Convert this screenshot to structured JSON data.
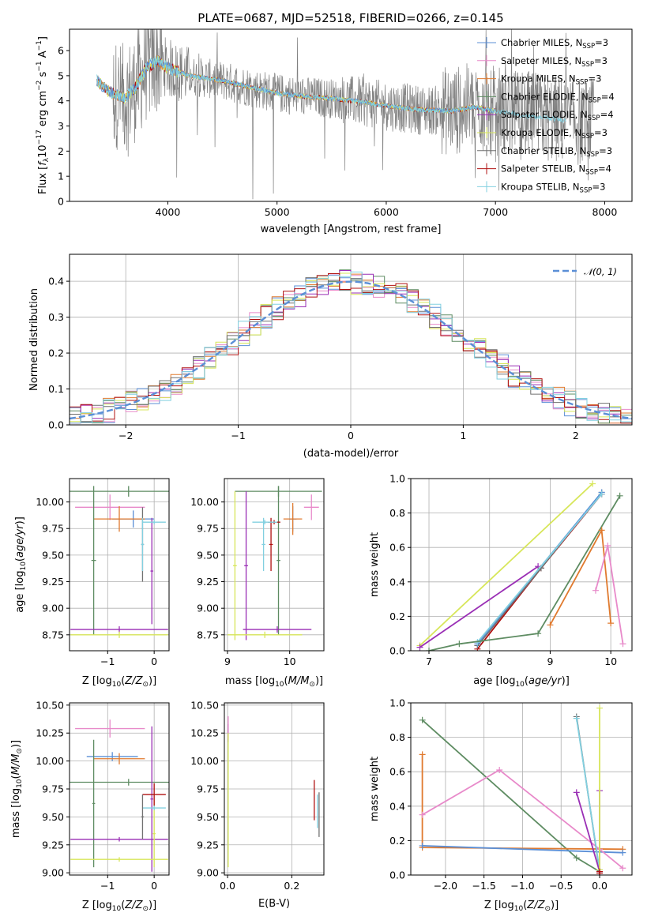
{
  "colors": {
    "chabrier_miles": "#5b8fd6",
    "salpeter_miles": "#e88aca",
    "kroupa_miles": "#e07a2e",
    "chabrier_elodie": "#5e8c62",
    "salpeter_elodie": "#9a2fb5",
    "kroupa_elodie": "#d7e659",
    "chabrier_stelib": "#707070",
    "salpeter_stelib": "#b01010",
    "kroupa_stelib": "#82d0e0",
    "gaussian": "#5b8fd6"
  },
  "chart_data": [
    {
      "id": "spectrum",
      "type": "line",
      "title": "PLATE=0687, MJD=52518, FIBERID=0266, z=0.145",
      "xlabel": "wavelength [Angstrom, rest frame]",
      "ylabel": "Flux [f_λ 10^-17 erg cm^-2 s^-1 A^-1]",
      "xlim": [
        3100,
        8250
      ],
      "ylim": [
        0,
        6.85
      ],
      "xticks": [
        "4000",
        "5000",
        "6000",
        "7000",
        "8000"
      ],
      "xtick_values": [
        4000,
        5000,
        6000,
        7000,
        8000
      ],
      "yticks": [
        "0",
        "1",
        "2",
        "3",
        "4",
        "5",
        "6"
      ],
      "ytick_values": [
        0,
        1,
        2,
        3,
        4,
        5,
        6
      ],
      "legend_position": "top-right",
      "continuum": {
        "x": [
          3350,
          3450,
          3600,
          3700,
          3800,
          3900,
          4000,
          4200,
          4500,
          4800,
          5000,
          5200,
          5500,
          5800,
          6000,
          6300,
          6600,
          6800,
          7200,
          7600,
          7900
        ],
        "y": [
          4.8,
          4.4,
          4.1,
          4.5,
          5.3,
          5.6,
          5.3,
          5.0,
          4.8,
          4.5,
          4.3,
          4.2,
          4.1,
          3.95,
          3.8,
          3.65,
          3.6,
          3.75,
          3.45,
          3.25,
          3.1
        ]
      },
      "series": [
        {
          "name": "Chabrier MILES, N_SSP=3",
          "label_main": "Chabrier MILES, N",
          "label_sub": "SSP",
          "label_end": "=3",
          "color_key": "chabrier_miles"
        },
        {
          "name": "Salpeter MILES, N_SSP=3",
          "label_main": "Salpeter MILES, N",
          "label_sub": "SSP",
          "label_end": "=3",
          "color_key": "salpeter_miles"
        },
        {
          "name": "Kroupa MILES, N_SSP=3",
          "label_main": "Kroupa MILES, N",
          "label_sub": "SSP",
          "label_end": "=3",
          "color_key": "kroupa_miles"
        },
        {
          "name": "Chabrier ELODIE, N_SSP=4",
          "label_main": "Chabrier ELODIE, N",
          "label_sub": "SSP",
          "label_end": "=4",
          "color_key": "chabrier_elodie"
        },
        {
          "name": "Salpeter ELODIE, N_SSP=4",
          "label_main": "Salpeter ELODIE, N",
          "label_sub": "SSP",
          "label_end": "=4",
          "color_key": "salpeter_elodie"
        },
        {
          "name": "Kroupa ELODIE, N_SSP=3",
          "label_main": "Kroupa ELODIE, N",
          "label_sub": "SSP",
          "label_end": "=3",
          "color_key": "kroupa_elodie"
        },
        {
          "name": "Chabrier STELIB, N_SSP=3",
          "label_main": "Chabrier STELIB, N",
          "label_sub": "SSP",
          "label_end": "=3",
          "color_key": "chabrier_stelib"
        },
        {
          "name": "Salpeter STELIB, N_SSP=4",
          "label_main": "Salpeter STELIB, N",
          "label_sub": "SSP",
          "label_end": "=4",
          "color_key": "salpeter_stelib"
        },
        {
          "name": "Kroupa STELIB, N_SSP=3",
          "label_main": "Kroupa STELIB, N",
          "label_sub": "SSP",
          "label_end": "=3",
          "color_key": "kroupa_stelib"
        }
      ]
    },
    {
      "id": "residuals",
      "type": "line",
      "xlabel": "(data-model)/error",
      "ylabel": "Normed distribution",
      "xlim": [
        -2.5,
        2.5
      ],
      "ylim": [
        0,
        0.475
      ],
      "xticks": [
        "−2",
        "−1",
        "0",
        "1",
        "2"
      ],
      "xtick_values": [
        -2,
        -1,
        0,
        1,
        2
      ],
      "yticks": [
        "0.0",
        "0.1",
        "0.2",
        "0.3",
        "0.4"
      ],
      "ytick_values": [
        0,
        0.1,
        0.2,
        0.3,
        0.4
      ],
      "legend": "𝒩(0, 1)",
      "legend_position": "top-right",
      "grid": true,
      "bin_width": 0.1
    },
    {
      "id": "age_vs_z",
      "type": "scatter",
      "xlabel": "Z [log10(Z/Z⊙)]",
      "ylabel": "age [log10(age/yr)]",
      "xlim": [
        -1.82,
        0.32
      ],
      "ylim": [
        8.6,
        10.22
      ],
      "xticks": [
        "−1",
        "0"
      ],
      "xtick_values": [
        -1,
        0
      ],
      "yticks": [
        "8.75",
        "9.00",
        "9.25",
        "9.50",
        "9.75",
        "10.00"
      ],
      "ytick_values": [
        8.75,
        9.0,
        9.25,
        9.5,
        9.75,
        10.0
      ],
      "grid": true,
      "points": [
        {
          "color_key": "chabrier_miles",
          "x": -0.45,
          "y": 9.84,
          "xerr": 0.45,
          "yerr": 0.08
        },
        {
          "color_key": "salpeter_miles",
          "x": -0.95,
          "y": 9.95,
          "xerr": 0.75,
          "yerr": 0.12
        },
        {
          "color_key": "kroupa_miles",
          "x": -0.75,
          "y": 9.84,
          "xerr": 0.55,
          "yerr": 0.12
        },
        {
          "color_key": "chabrier_elodie",
          "x": -0.55,
          "y": 10.1,
          "xerr": 1.3,
          "yerr": 0.05
        },
        {
          "color_key": "chabrier_elodie",
          "x": -1.3,
          "y": 9.45,
          "xerr": 0.05,
          "yerr": 0.7
        },
        {
          "color_key": "salpeter_elodie",
          "x": -0.75,
          "y": 8.8,
          "xerr": 1.05,
          "yerr": 0.03
        },
        {
          "color_key": "salpeter_elodie",
          "x": -0.05,
          "y": 9.35,
          "xerr": 0.03,
          "yerr": 0.5
        },
        {
          "color_key": "kroupa_elodie",
          "x": -0.75,
          "y": 8.75,
          "xerr": 1.05,
          "yerr": 0.03
        },
        {
          "color_key": "chabrier_stelib",
          "x": -0.25,
          "y": 9.6,
          "xerr": 0.03,
          "yerr": 0.35
        },
        {
          "color_key": "kroupa_stelib",
          "x": 0.0,
          "y": 9.81,
          "xerr": 0.25,
          "yerr": 0.02
        },
        {
          "color_key": "kroupa_stelib",
          "x": -0.25,
          "y": 9.6,
          "xerr": 0.03,
          "yerr": 0.25
        }
      ]
    },
    {
      "id": "age_vs_mass",
      "type": "scatter",
      "xlabel": "mass [log10(M/M⊙)]",
      "xlim": [
        8.95,
        10.55
      ],
      "ylim": [
        8.6,
        10.22
      ],
      "xticks": [
        "9",
        "10"
      ],
      "xtick_values": [
        9,
        10
      ],
      "yticks": [
        "8.75",
        "9.00",
        "9.25",
        "9.50",
        "9.75",
        "10.00"
      ],
      "ytick_values": [
        8.75,
        9.0,
        9.25,
        9.5,
        9.75,
        10.0
      ],
      "grid": true,
      "points": [
        {
          "color_key": "chabrier_miles",
          "x": 10.05,
          "y": 9.84,
          "xerr": 0.06,
          "yerr": 0.12
        },
        {
          "color_key": "salpeter_miles",
          "x": 10.35,
          "y": 9.95,
          "xerr": 0.12,
          "yerr": 0.12
        },
        {
          "color_key": "kroupa_miles",
          "x": 10.05,
          "y": 9.84,
          "xerr": 0.15,
          "yerr": 0.15
        },
        {
          "color_key": "chabrier_elodie",
          "x": 9.82,
          "y": 10.1,
          "xerr": 0.7,
          "yerr": 0.05
        },
        {
          "color_key": "chabrier_elodie",
          "x": 9.82,
          "y": 9.45,
          "xerr": 0.03,
          "yerr": 0.7
        },
        {
          "color_key": "salpeter_elodie",
          "x": 9.3,
          "y": 9.4,
          "xerr": 0.03,
          "yerr": 0.7
        },
        {
          "color_key": "salpeter_elodie",
          "x": 9.8,
          "y": 8.8,
          "xerr": 0.55,
          "yerr": 0.03
        },
        {
          "color_key": "kroupa_elodie",
          "x": 9.12,
          "y": 9.4,
          "xerr": 0.03,
          "yerr": 0.7
        },
        {
          "color_key": "kroupa_elodie",
          "x": 9.6,
          "y": 8.75,
          "xerr": 0.6,
          "yerr": 0.03
        },
        {
          "color_key": "salpeter_stelib",
          "x": 9.7,
          "y": 9.6,
          "xerr": 0.03,
          "yerr": 0.25
        },
        {
          "color_key": "salpeter_stelib",
          "x": 9.75,
          "y": 9.81,
          "xerr": 0.1,
          "yerr": 0.02
        },
        {
          "color_key": "kroupa_stelib",
          "x": 9.58,
          "y": 9.6,
          "xerr": 0.03,
          "yerr": 0.25
        },
        {
          "color_key": "kroupa_stelib",
          "x": 9.6,
          "y": 9.81,
          "xerr": 0.2,
          "yerr": 0.02
        }
      ]
    },
    {
      "id": "weight_vs_age",
      "type": "line",
      "xlabel": "age [log10(age/yr)]",
      "ylabel": "mass weight",
      "xlim": [
        6.7,
        10.35
      ],
      "ylim": [
        0,
        1.0
      ],
      "xticks": [
        "7",
        "8",
        "9",
        "10"
      ],
      "xtick_values": [
        7,
        8,
        9,
        10
      ],
      "yticks": [
        "0.0",
        "0.2",
        "0.4",
        "0.6",
        "0.8",
        "1.0"
      ],
      "ytick_values": [
        0,
        0.2,
        0.4,
        0.6,
        0.8,
        1.0
      ],
      "grid": true,
      "series": [
        {
          "color_key": "kroupa_elodie",
          "x": [
            6.85,
            9.7
          ],
          "y": [
            0.03,
            0.97
          ]
        },
        {
          "color_key": "salpeter_elodie",
          "x": [
            6.85,
            8.8
          ],
          "y": [
            0.02,
            0.49
          ]
        },
        {
          "color_key": "salpeter_stelib",
          "x": [
            7.8,
            8.85,
            9.85
          ],
          "y": [
            0.01,
            0.48,
            0.91
          ]
        },
        {
          "color_key": "chabrier_stelib",
          "x": [
            7.8,
            8.85,
            9.85
          ],
          "y": [
            0.03,
            0.48,
            0.92
          ]
        },
        {
          "color_key": "chabrier_miles",
          "x": [
            7.8,
            9.85
          ],
          "y": [
            0.04,
            0.92
          ]
        },
        {
          "color_key": "kroupa_stelib",
          "x": [
            7.8,
            9.85
          ],
          "y": [
            0.05,
            0.91
          ]
        },
        {
          "color_key": "chabrier_elodie",
          "x": [
            7.0,
            7.5,
            8.8,
            10.15
          ],
          "y": [
            0.0,
            0.04,
            0.1,
            0.9
          ]
        },
        {
          "color_key": "kroupa_miles",
          "x": [
            9.0,
            9.85,
            10.0
          ],
          "y": [
            0.15,
            0.7,
            0.16
          ]
        },
        {
          "color_key": "salpeter_miles",
          "x": [
            9.75,
            9.95,
            10.2
          ],
          "y": [
            0.35,
            0.61,
            0.04
          ]
        }
      ]
    },
    {
      "id": "mass_vs_z",
      "type": "scatter",
      "xlabel": "Z [log10(Z/Z⊙)]",
      "ylabel": "mass [log10(M/M⊙)]",
      "xlim": [
        -1.82,
        0.32
      ],
      "ylim": [
        8.98,
        10.52
      ],
      "xticks": [
        "−1",
        "0"
      ],
      "xtick_values": [
        -1,
        0
      ],
      "yticks": [
        "9.00",
        "9.25",
        "9.50",
        "9.75",
        "10.00",
        "10.25",
        "10.50"
      ],
      "ytick_values": [
        9.0,
        9.25,
        9.5,
        9.75,
        10.0,
        10.25,
        10.5
      ],
      "grid": true,
      "points": [
        {
          "color_key": "salpeter_miles",
          "x": -0.95,
          "y": 10.29,
          "xerr": 0.75,
          "yerr": 0.08
        },
        {
          "color_key": "chabrier_miles",
          "x": -0.9,
          "y": 10.04,
          "xerr": 0.55,
          "yerr": 0.04
        },
        {
          "color_key": "kroupa_miles",
          "x": -0.75,
          "y": 10.02,
          "xerr": 0.55,
          "yerr": 0.05
        },
        {
          "color_key": "chabrier_elodie",
          "x": -0.55,
          "y": 9.81,
          "xerr": 1.3,
          "yerr": 0.03
        },
        {
          "color_key": "chabrier_elodie",
          "x": -1.3,
          "y": 9.62,
          "xerr": 0.03,
          "yerr": 0.57
        },
        {
          "color_key": "salpeter_elodie",
          "x": -0.75,
          "y": 9.3,
          "xerr": 1.05,
          "yerr": 0.02
        },
        {
          "color_key": "salpeter_elodie",
          "x": -0.05,
          "y": 9.66,
          "xerr": 0.03,
          "yerr": 0.65
        },
        {
          "color_key": "kroupa_elodie",
          "x": -0.75,
          "y": 9.12,
          "xerr": 1.05,
          "yerr": 0.02
        },
        {
          "color_key": "kroupa_elodie",
          "x": 0.0,
          "y": 9.35,
          "xerr": 0.03,
          "yerr": 0.3
        },
        {
          "color_key": "salpeter_stelib",
          "x": 0.0,
          "y": 9.7,
          "xerr": 0.25,
          "yerr": 0.1
        },
        {
          "color_key": "kroupa_stelib",
          "x": 0.0,
          "y": 9.58,
          "xerr": 0.25,
          "yerr": 0.02
        },
        {
          "color_key": "chabrier_stelib",
          "x": -0.25,
          "y": 9.5,
          "xerr": 0.03,
          "yerr": 0.2
        }
      ]
    },
    {
      "id": "mass_vs_ebv",
      "type": "scatter",
      "xlabel": "E(B-V)",
      "xlim": [
        -0.01,
        0.3
      ],
      "ylim": [
        8.98,
        10.52
      ],
      "xticks": [
        "0.0",
        "0.2"
      ],
      "xtick_values": [
        0.0,
        0.2
      ],
      "yticks": [
        "9.00",
        "9.25",
        "9.50",
        "9.75",
        "10.00",
        "10.25",
        "10.50"
      ],
      "ytick_values": [
        9.0,
        9.25,
        9.5,
        9.75,
        10.0,
        10.25,
        10.5
      ],
      "grid": true,
      "points": [
        {
          "color_key": "salpeter_elodie",
          "x": 0.002,
          "y": 10.25,
          "xerr": 0.0,
          "yerr": 0.08
        },
        {
          "color_key": "salpeter_miles",
          "x": 0.002,
          "y": 10.3,
          "xerr": 0.0,
          "yerr": 0.1
        },
        {
          "color_key": "kroupa_elodie",
          "x": 0.002,
          "y": 9.65,
          "xerr": 0.0,
          "yerr": 0.6
        },
        {
          "color_key": "salpeter_stelib",
          "x": 0.27,
          "y": 9.65,
          "xerr": 0.0,
          "yerr": 0.18
        },
        {
          "color_key": "kroupa_stelib",
          "x": 0.28,
          "y": 9.55,
          "xerr": 0.0,
          "yerr": 0.15
        },
        {
          "color_key": "chabrier_stelib",
          "x": 0.285,
          "y": 9.52,
          "xerr": 0.0,
          "yerr": 0.2
        }
      ]
    },
    {
      "id": "weight_vs_z",
      "type": "line",
      "xlabel": "Z [log10(Z/Z⊙)]",
      "ylabel": "mass weight",
      "xlim": [
        -2.45,
        0.42
      ],
      "ylim": [
        0,
        1.0
      ],
      "xticks": [
        "−2.0",
        "−1.5",
        "−1.0",
        "−0.5",
        "0.0"
      ],
      "xtick_values": [
        -2.0,
        -1.5,
        -1.0,
        -0.5,
        0.0
      ],
      "yticks": [
        "0.0",
        "0.2",
        "0.4",
        "0.6",
        "0.8",
        "1.0"
      ],
      "ytick_values": [
        0,
        0.2,
        0.4,
        0.6,
        0.8,
        1.0
      ],
      "grid": true,
      "series": [
        {
          "color_key": "chabrier_elodie",
          "x": [
            -2.3,
            -0.3,
            0.0
          ],
          "y": [
            0.9,
            0.1,
            0.02
          ]
        },
        {
          "color_key": "kroupa_miles",
          "x": [
            -2.3,
            -2.3,
            0.3
          ],
          "y": [
            0.7,
            0.16,
            0.15
          ]
        },
        {
          "color_key": "chabrier_miles",
          "x": [
            -2.3,
            0.3
          ],
          "y": [
            0.17,
            0.13
          ]
        },
        {
          "color_key": "salpeter_miles",
          "x": [
            -2.3,
            -1.3,
            0.0,
            0.3
          ],
          "y": [
            0.35,
            0.61,
            0.15,
            0.04
          ]
        },
        {
          "color_key": "chabrier_stelib",
          "x": [
            -0.3,
            0.0
          ],
          "y": [
            0.92,
            0.02
          ]
        },
        {
          "color_key": "kroupa_stelib",
          "x": [
            -0.3,
            0.0
          ],
          "y": [
            0.91,
            0.03
          ]
        },
        {
          "color_key": "salpeter_elodie",
          "x": [
            -0.3,
            0.0,
            0.0
          ],
          "y": [
            0.48,
            0.02,
            0.49
          ]
        },
        {
          "color_key": "kroupa_elodie",
          "x": [
            0.0,
            0.0
          ],
          "y": [
            0.97,
            0.03
          ]
        },
        {
          "color_key": "salpeter_stelib",
          "x": [
            0.0,
            0.0
          ],
          "y": [
            0.01,
            0.02
          ]
        }
      ]
    }
  ]
}
